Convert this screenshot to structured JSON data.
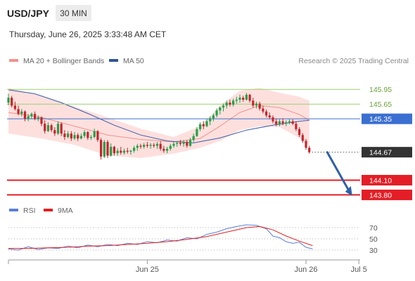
{
  "header": {
    "symbol": "USD/JPY",
    "interval": "30 MIN",
    "timestamp": "Thursday, June 26, 2025 3:33:48 AM CET"
  },
  "legend": [
    {
      "name": "MA 20 + Bollinger Bands",
      "color": "#f2928c",
      "icon": "legend-swatch"
    },
    {
      "name": "MA 50",
      "color": "#2f5597",
      "icon": "legend-swatch"
    }
  ],
  "credit": "Research © 2025 Trading Central",
  "rsi_legend": [
    {
      "name": "RSI",
      "color": "#5b7fd6"
    },
    {
      "name": "9MA",
      "color": "#e02020"
    }
  ],
  "colors": {
    "up": "#22a04a",
    "down": "#c8232c",
    "band_fill": "#fde0de",
    "ma20": "#f2928c",
    "ma50": "#3b5aa8",
    "green_level": "#9ccf6b",
    "blue_level": "#3b6fd1",
    "red_level": "#e41e26",
    "arrow": "#2e60a8",
    "last_label": "#333333"
  },
  "chart_data": {
    "type": "candlestick",
    "x_range": [
      0,
      108
    ],
    "y_range": [
      143.62,
      146.34
    ],
    "x_ticks": [
      {
        "x": 42,
        "label": "Jun 25"
      },
      {
        "x": 90,
        "label": "Jun 26"
      },
      {
        "x": 106,
        "label": "Jul 5"
      }
    ],
    "levels": [
      {
        "value": 145.95,
        "label": "145.95",
        "kind": "green"
      },
      {
        "value": 145.65,
        "label": "145.65",
        "kind": "green"
      },
      {
        "value": 145.35,
        "label": "145.35",
        "kind": "blue"
      },
      {
        "value": 144.67,
        "label": "144.67",
        "kind": "last"
      },
      {
        "value": 144.1,
        "label": "144.10",
        "kind": "red"
      },
      {
        "value": 143.8,
        "label": "143.80",
        "kind": "red"
      }
    ],
    "forecast_arrow": {
      "from": [
        96,
        144.67
      ],
      "to": [
        104,
        143.78
      ]
    },
    "candles": [
      [
        0,
        145.68,
        145.86,
        145.63,
        145.78
      ],
      [
        1,
        145.78,
        145.82,
        145.58,
        145.62
      ],
      [
        2,
        145.62,
        145.7,
        145.52,
        145.55
      ],
      [
        3,
        145.55,
        145.62,
        145.42,
        145.45
      ],
      [
        4,
        145.45,
        145.55,
        145.4,
        145.5
      ],
      [
        5,
        145.5,
        145.52,
        145.3,
        145.35
      ],
      [
        6,
        145.35,
        145.45,
        145.3,
        145.4
      ],
      [
        7,
        145.4,
        145.48,
        145.35,
        145.45
      ],
      [
        8,
        145.45,
        145.5,
        145.32,
        145.35
      ],
      [
        9,
        145.35,
        145.42,
        145.3,
        145.38
      ],
      [
        10,
        145.38,
        145.4,
        145.2,
        145.25
      ],
      [
        11,
        145.25,
        145.32,
        145.05,
        145.1
      ],
      [
        12,
        145.1,
        145.28,
        145.08,
        145.22
      ],
      [
        13,
        145.22,
        145.25,
        145.08,
        145.12
      ],
      [
        14,
        145.12,
        145.18,
        145.0,
        145.05
      ],
      [
        15,
        145.05,
        145.3,
        145.02,
        145.25
      ],
      [
        16,
        145.25,
        145.28,
        145.0,
        145.05
      ],
      [
        17,
        145.05,
        145.12,
        144.92,
        144.98
      ],
      [
        18,
        144.98,
        145.1,
        144.95,
        145.05
      ],
      [
        19,
        145.05,
        145.1,
        144.9,
        144.95
      ],
      [
        20,
        144.95,
        145.08,
        144.92,
        145.02
      ],
      [
        21,
        145.02,
        145.06,
        144.9,
        144.95
      ],
      [
        22,
        144.95,
        145.05,
        144.93,
        145.0
      ],
      [
        23,
        145.0,
        145.12,
        144.96,
        145.08
      ],
      [
        24,
        145.08,
        145.1,
        144.92,
        144.96
      ],
      [
        25,
        144.96,
        145.02,
        144.92,
        144.98
      ],
      [
        26,
        144.98,
        145.15,
        144.95,
        145.1
      ],
      [
        27,
        145.1,
        145.12,
        144.88,
        144.92
      ],
      [
        28,
        144.92,
        144.96,
        144.52,
        144.58
      ],
      [
        29,
        144.58,
        144.92,
        144.55,
        144.88
      ],
      [
        30,
        144.88,
        144.92,
        144.55,
        144.6
      ],
      [
        31,
        144.6,
        144.85,
        144.58,
        144.78
      ],
      [
        32,
        144.78,
        144.8,
        144.6,
        144.65
      ],
      [
        33,
        144.65,
        144.75,
        144.6,
        144.7
      ],
      [
        34,
        144.7,
        144.78,
        144.62,
        144.66
      ],
      [
        35,
        144.66,
        144.74,
        144.62,
        144.7
      ],
      [
        36,
        144.7,
        144.76,
        144.64,
        144.68
      ],
      [
        37,
        144.68,
        144.72,
        144.62,
        144.7
      ],
      [
        38,
        144.7,
        144.8,
        144.66,
        144.76
      ],
      [
        39,
        144.76,
        144.84,
        144.7,
        144.8
      ],
      [
        40,
        144.8,
        144.84,
        144.74,
        144.78
      ],
      [
        41,
        144.78,
        144.86,
        144.74,
        144.82
      ],
      [
        42,
        144.82,
        144.88,
        144.76,
        144.8
      ],
      [
        43,
        144.8,
        144.86,
        144.74,
        144.82
      ],
      [
        44,
        144.82,
        144.86,
        144.76,
        144.8
      ],
      [
        45,
        144.8,
        144.88,
        144.74,
        144.84
      ],
      [
        46,
        144.84,
        144.9,
        144.7,
        144.74
      ],
      [
        47,
        144.74,
        144.8,
        144.66,
        144.7
      ],
      [
        48,
        144.7,
        144.78,
        144.65,
        144.74
      ],
      [
        49,
        144.74,
        144.84,
        144.7,
        144.8
      ],
      [
        50,
        144.8,
        144.88,
        144.76,
        144.84
      ],
      [
        51,
        144.84,
        144.9,
        144.78,
        144.86
      ],
      [
        52,
        144.86,
        144.92,
        144.8,
        144.84
      ],
      [
        53,
        144.84,
        144.92,
        144.78,
        144.88
      ],
      [
        54,
        144.88,
        144.92,
        144.76,
        144.8
      ],
      [
        55,
        144.8,
        144.96,
        144.78,
        144.92
      ],
      [
        56,
        144.92,
        145.05,
        144.88,
        145.0
      ],
      [
        57,
        145.0,
        145.18,
        144.98,
        145.14
      ],
      [
        58,
        145.14,
        145.28,
        145.1,
        145.24
      ],
      [
        59,
        145.24,
        145.3,
        145.14,
        145.2
      ],
      [
        60,
        145.2,
        145.34,
        145.18,
        145.3
      ],
      [
        61,
        145.3,
        145.4,
        145.22,
        145.36
      ],
      [
        62,
        145.36,
        145.46,
        145.3,
        145.42
      ],
      [
        63,
        145.42,
        145.56,
        145.38,
        145.52
      ],
      [
        64,
        145.52,
        145.6,
        145.44,
        145.58
      ],
      [
        65,
        145.58,
        145.66,
        145.5,
        145.62
      ],
      [
        66,
        145.62,
        145.72,
        145.56,
        145.68
      ],
      [
        67,
        145.68,
        145.74,
        145.6,
        145.64
      ],
      [
        68,
        145.64,
        145.76,
        145.6,
        145.72
      ],
      [
        69,
        145.72,
        145.8,
        145.66,
        145.74
      ],
      [
        70,
        145.74,
        145.84,
        145.68,
        145.78
      ],
      [
        71,
        145.78,
        145.82,
        145.7,
        145.74
      ],
      [
        72,
        145.74,
        145.88,
        145.72,
        145.84
      ],
      [
        73,
        145.84,
        145.86,
        145.68,
        145.72
      ],
      [
        74,
        145.72,
        145.78,
        145.58,
        145.62
      ],
      [
        75,
        145.62,
        145.7,
        145.56,
        145.66
      ],
      [
        76,
        145.66,
        145.7,
        145.52,
        145.56
      ],
      [
        77,
        145.56,
        145.62,
        145.46,
        145.5
      ],
      [
        78,
        145.5,
        145.54,
        145.38,
        145.42
      ],
      [
        79,
        145.42,
        145.48,
        145.34,
        145.38
      ],
      [
        80,
        145.38,
        145.42,
        145.26,
        145.3
      ],
      [
        81,
        145.3,
        145.36,
        145.2,
        145.24
      ],
      [
        82,
        145.24,
        145.34,
        145.2,
        145.3
      ],
      [
        83,
        145.3,
        145.36,
        145.22,
        145.26
      ],
      [
        84,
        145.26,
        145.32,
        145.2,
        145.28
      ],
      [
        85,
        145.28,
        145.34,
        145.24,
        145.3
      ],
      [
        86,
        145.3,
        145.34,
        145.22,
        145.25
      ],
      [
        87,
        145.25,
        145.3,
        145.1,
        145.14
      ],
      [
        88,
        145.14,
        145.18,
        144.98,
        145.02
      ],
      [
        89,
        145.02,
        145.06,
        144.86,
        144.9
      ],
      [
        90,
        144.9,
        144.94,
        144.72,
        144.76
      ],
      [
        91,
        144.76,
        144.8,
        144.64,
        144.67
      ]
    ],
    "ma20": [
      [
        0,
        145.48
      ],
      [
        10,
        145.38
      ],
      [
        20,
        145.2
      ],
      [
        30,
        145.02
      ],
      [
        40,
        144.93
      ],
      [
        50,
        144.88
      ],
      [
        58,
        144.95
      ],
      [
        64,
        145.2
      ],
      [
        70,
        145.48
      ],
      [
        76,
        145.62
      ],
      [
        82,
        145.58
      ],
      [
        88,
        145.44
      ],
      [
        91,
        145.32
      ]
    ],
    "bb_upper": [
      [
        0,
        145.98
      ],
      [
        10,
        145.82
      ],
      [
        20,
        145.6
      ],
      [
        30,
        145.38
      ],
      [
        40,
        145.15
      ],
      [
        50,
        144.98
      ],
      [
        58,
        145.2
      ],
      [
        64,
        145.62
      ],
      [
        70,
        145.92
      ],
      [
        76,
        145.98
      ],
      [
        82,
        145.88
      ],
      [
        88,
        145.8
      ],
      [
        91,
        145.72
      ]
    ],
    "bb_lower": [
      [
        0,
        145.05
      ],
      [
        10,
        144.95
      ],
      [
        20,
        144.82
      ],
      [
        30,
        144.6
      ],
      [
        40,
        144.55
      ],
      [
        50,
        144.64
      ],
      [
        58,
        144.76
      ],
      [
        64,
        144.9
      ],
      [
        70,
        145.12
      ],
      [
        76,
        145.2
      ],
      [
        82,
        145.18
      ],
      [
        88,
        144.96
      ],
      [
        91,
        144.8
      ]
    ],
    "ma50": [
      [
        0,
        145.94
      ],
      [
        8,
        145.86
      ],
      [
        16,
        145.68
      ],
      [
        24,
        145.46
      ],
      [
        32,
        145.22
      ],
      [
        40,
        145.02
      ],
      [
        48,
        144.9
      ],
      [
        56,
        144.86
      ],
      [
        64,
        144.96
      ],
      [
        72,
        145.12
      ],
      [
        80,
        145.22
      ],
      [
        88,
        145.3
      ],
      [
        91,
        145.32
      ]
    ],
    "rsi": {
      "y_range": [
        20,
        80
      ],
      "ticks": [
        70,
        50,
        30
      ],
      "rsi": [
        [
          0,
          32
        ],
        [
          3,
          30
        ],
        [
          6,
          36
        ],
        [
          9,
          31
        ],
        [
          12,
          34
        ],
        [
          15,
          33
        ],
        [
          18,
          37
        ],
        [
          21,
          34
        ],
        [
          24,
          39
        ],
        [
          27,
          36
        ],
        [
          30,
          40
        ],
        [
          33,
          38
        ],
        [
          36,
          42
        ],
        [
          39,
          40
        ],
        [
          42,
          45
        ],
        [
          45,
          43
        ],
        [
          48,
          48
        ],
        [
          51,
          46
        ],
        [
          54,
          52
        ],
        [
          57,
          50
        ],
        [
          60,
          58
        ],
        [
          63,
          62
        ],
        [
          66,
          68
        ],
        [
          69,
          72
        ],
        [
          72,
          75
        ],
        [
          75,
          74
        ],
        [
          78,
          68
        ],
        [
          80,
          55
        ],
        [
          82,
          52
        ],
        [
          84,
          45
        ],
        [
          86,
          42
        ],
        [
          88,
          44
        ],
        [
          90,
          35
        ],
        [
          92,
          32
        ]
      ],
      "ma9": [
        [
          0,
          33
        ],
        [
          6,
          33
        ],
        [
          12,
          34
        ],
        [
          18,
          35
        ],
        [
          24,
          37
        ],
        [
          30,
          38
        ],
        [
          36,
          40
        ],
        [
          42,
          42
        ],
        [
          48,
          45
        ],
        [
          54,
          49
        ],
        [
          60,
          54
        ],
        [
          66,
          62
        ],
        [
          72,
          70
        ],
        [
          76,
          72
        ],
        [
          80,
          66
        ],
        [
          84,
          55
        ],
        [
          88,
          46
        ],
        [
          92,
          38
        ]
      ]
    }
  }
}
